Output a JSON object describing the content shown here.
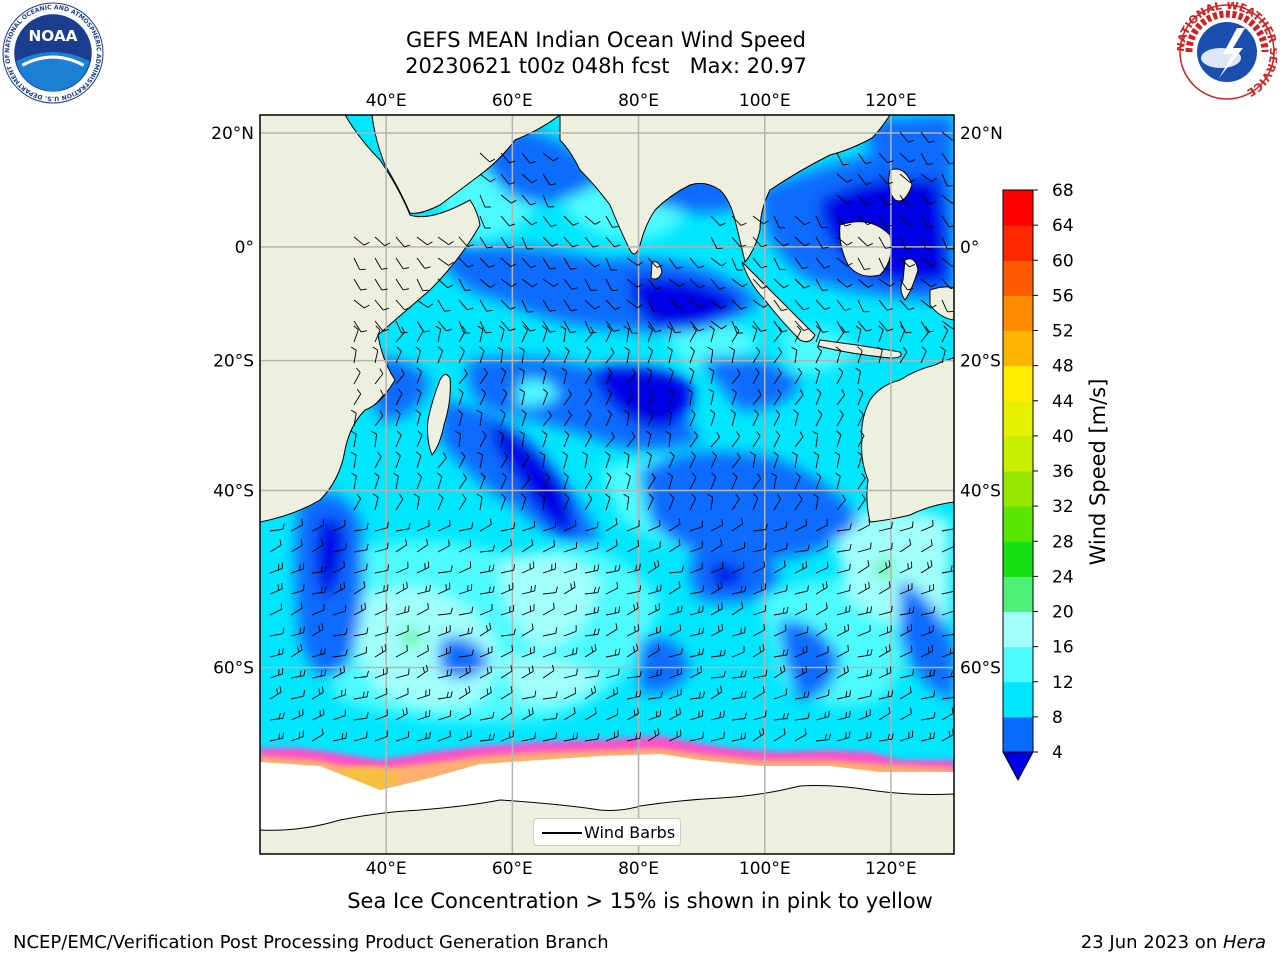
{
  "title": {
    "line1": "GEFS MEAN Indian Ocean Wind Speed",
    "line2": "20230621 t00z 048h fcst   Max: 20.97"
  },
  "logos": {
    "left": "noaa-logo",
    "right": "nws-logo",
    "left_text": "NOAA",
    "left_ring_text": "NATIONAL OCEANIC AND ATMOSPHERIC ADMINISTRATION U.S. DEPARTMENT OF COMMERCE",
    "right_ring_text": "NATIONAL WEATHER SERVICE"
  },
  "map": {
    "projection": "equirectangular",
    "lon_range": [
      20,
      130
    ],
    "lat_range": [
      -73,
      23
    ],
    "lon_ticks": [
      {
        "lon": 40,
        "label": "40°E"
      },
      {
        "lon": 60,
        "label": "60°E"
      },
      {
        "lon": 80,
        "label": "80°E"
      },
      {
        "lon": 100,
        "label": "100°E"
      },
      {
        "lon": 120,
        "label": "120°E"
      }
    ],
    "lat_ticks": [
      {
        "lat": 20,
        "label": "20°N"
      },
      {
        "lat": 0,
        "label": "0°"
      },
      {
        "lat": -20,
        "label": "20°S"
      },
      {
        "lat": -40,
        "label": "40°S"
      },
      {
        "lat": -60,
        "label": "60°S"
      }
    ],
    "grid": true,
    "legend": {
      "label": "Wind Barbs",
      "placement": "bottom-center"
    }
  },
  "colorbar": {
    "label": "Wind Speed [m/s]",
    "ticks": [
      4,
      8,
      12,
      16,
      20,
      24,
      28,
      32,
      36,
      40,
      44,
      48,
      52,
      56,
      60,
      64,
      68
    ],
    "colors": [
      "#0000e6",
      "#0a6cff",
      "#00e6ff",
      "#4dfbff",
      "#a0fffa",
      "#4ff07a",
      "#14e014",
      "#5ae600",
      "#96e600",
      "#c8ee00",
      "#e6f000",
      "#ffee00",
      "#ffb400",
      "#ff8c00",
      "#ff5a00",
      "#ff2800",
      "#ff0000"
    ],
    "extend": "min",
    "under_color": "#0000e6"
  },
  "colors": {
    "land": "#efefdf",
    "sea_ice": "#ffffff",
    "ice_edge": "#ff4ecb",
    "ice_mid": "#ffb070"
  },
  "caption": "Sea Ice Concentration > 15% is shown in pink to yellow",
  "footer": {
    "left": "NCEP/EMC/Verification Post Processing Product Generation Branch",
    "right_prefix": "23 Jun 2023 on ",
    "right_machine": "Hera"
  },
  "chart_data": {
    "type": "heatmap",
    "title": "GEFS MEAN Indian Ocean Wind Speed",
    "subtitle": "20230621 t00z 048h fcst   Max: 20.97",
    "max_value": 20.97,
    "units": "m/s",
    "clabel": "Wind Speed [m/s]",
    "speed_regions": [
      {
        "lon": [
          62,
          78
        ],
        "lat": [
          -2,
          8
        ],
        "speed": 7
      },
      {
        "lon": [
          78,
          96
        ],
        "lat": [
          -10,
          -22
        ],
        "speed": 6
      },
      {
        "lon": [
          42,
          55
        ],
        "lat": [
          -20,
          -30
        ],
        "speed": 8
      },
      {
        "lon": [
          95,
          128
        ],
        "lat": [
          8,
          22
        ],
        "speed": 7
      },
      {
        "lon": [
          52,
          60
        ],
        "lat": [
          -24,
          -33
        ],
        "speed": 6
      },
      {
        "lon": [
          88,
          98
        ],
        "lat": [
          -38,
          -44
        ],
        "speed": 6
      },
      {
        "lon": [
          60,
          90
        ],
        "lat": [
          -35,
          -60
        ],
        "speed": 14
      },
      {
        "lon": [
          35,
          60
        ],
        "lat": [
          -40,
          -58
        ],
        "speed": 15
      },
      {
        "lon": [
          100,
          128
        ],
        "lat": [
          -30,
          -50
        ],
        "speed": 14
      },
      {
        "lon": [
          40,
          52
        ],
        "lat": [
          -46,
          -52
        ],
        "speed": 20
      },
      {
        "lon": [
          117,
          120
        ],
        "lat": [
          -39,
          -42
        ],
        "speed": 21
      }
    ]
  }
}
